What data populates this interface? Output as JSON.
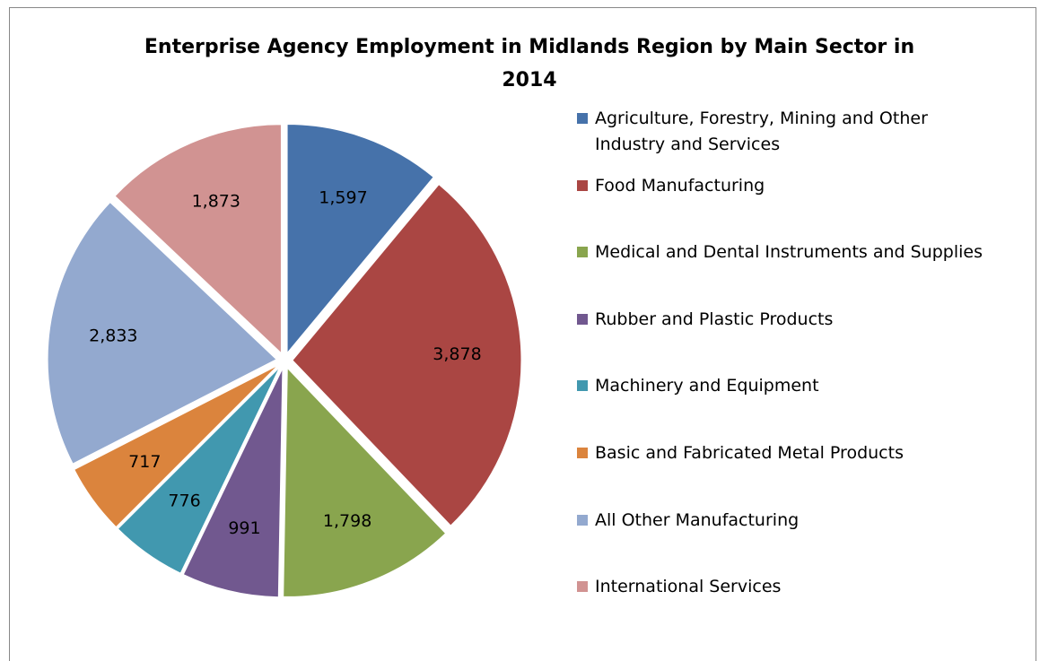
{
  "chart_data": {
    "type": "pie",
    "title": "Enterprise Agency Employment in Midlands Region by Main Sector in 2014",
    "categories": [
      "Agriculture, Forestry, Mining and Other Industry and Services",
      "Food Manufacturing",
      "Medical and Dental Instruments and Supplies",
      "Rubber and Plastic Products",
      "Machinery and Equipment",
      "Basic and Fabricated Metal Products",
      "All Other Manufacturing",
      "International Services"
    ],
    "values": [
      1597,
      3878,
      1798,
      991,
      776,
      717,
      2833,
      1873
    ],
    "value_labels": [
      "1,597",
      "3,878",
      "1,798",
      "991",
      "776",
      "717",
      "2,833",
      "1,873"
    ],
    "colors": [
      "#4672aa",
      "#aa4643",
      "#89a54e",
      "#71588f",
      "#4198af",
      "#db843d",
      "#93a9cf",
      "#d19392"
    ],
    "legend": "right"
  }
}
